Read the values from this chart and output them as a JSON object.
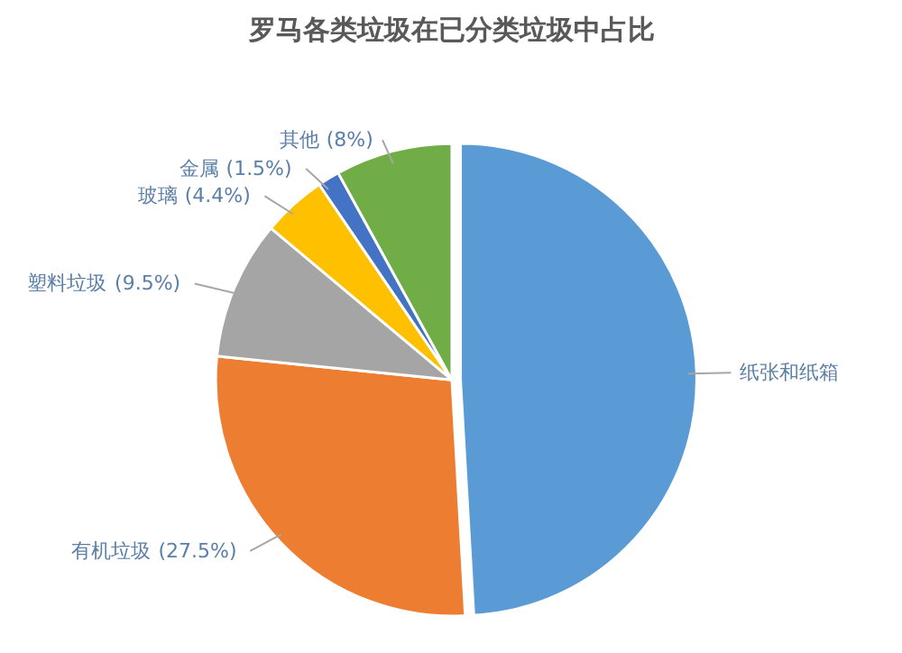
{
  "chart_data": {
    "type": "pie",
    "title": "罗马各类垃圾在已分类垃圾中占比",
    "categories": [
      "纸张和纸箱",
      "有机垃圾",
      "塑料垃圾",
      "玻璃",
      "金属",
      "其他"
    ],
    "values": [
      49.1,
      27.5,
      9.5,
      4.4,
      1.5,
      8
    ],
    "value_labels": [
      null,
      "(27.5%)",
      "(9.5%)",
      "(4.4%)",
      "(1.5%)",
      "(8%)"
    ],
    "colors": [
      "#5b9bd5",
      "#ed7d31",
      "#a5a5a5",
      "#ffc000",
      "#4472c4",
      "#70ad47"
    ],
    "legend": false
  }
}
